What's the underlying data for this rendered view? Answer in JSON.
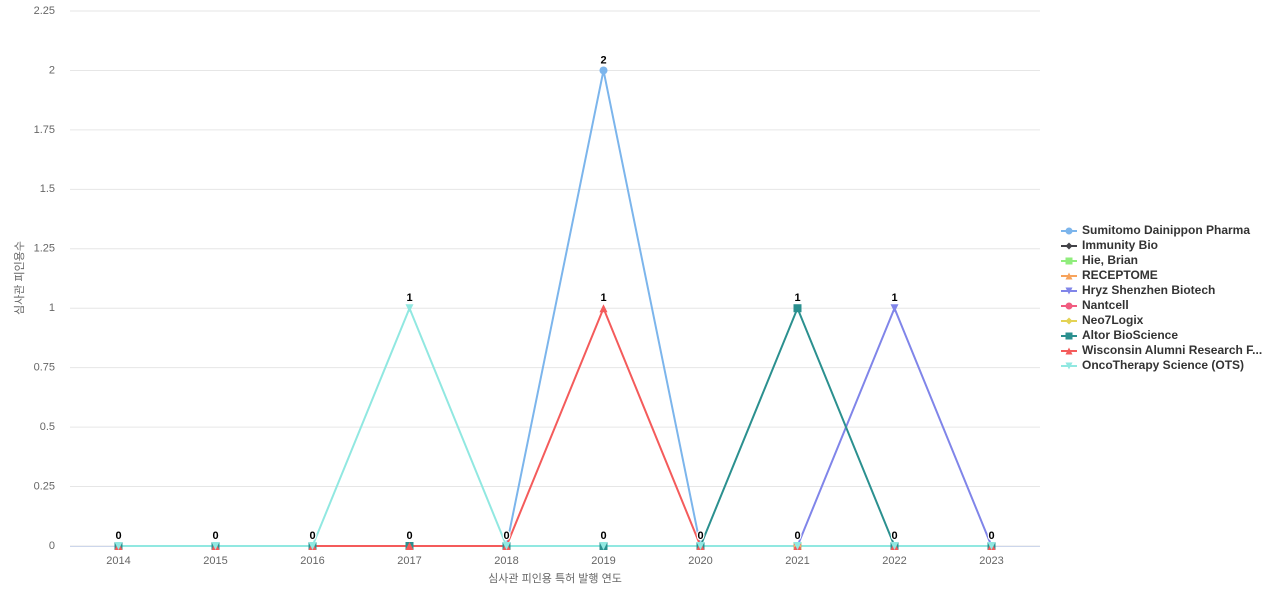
{
  "chart_data": {
    "type": "line",
    "x_label": "심사관 피인용 특허 발행 연도",
    "y_label": "심사관 피인용수",
    "categories": [
      "2014",
      "2015",
      "2016",
      "2017",
      "2018",
      "2019",
      "2020",
      "2021",
      "2022",
      "2023"
    ],
    "ylim": [
      0,
      2.25
    ],
    "yticks": [
      0,
      0.25,
      0.5,
      0.75,
      1,
      1.25,
      1.5,
      1.75,
      2,
      2.25
    ],
    "grid": true,
    "legend": "right",
    "series": [
      {
        "name": "Sumitomo Dainippon Pharma",
        "color": "#7cb5ec",
        "values": [
          0,
          0,
          0,
          0,
          0,
          2,
          0,
          0,
          0,
          0
        ]
      },
      {
        "name": "Immunity Bio",
        "color": "#434348",
        "values": [
          0,
          0,
          0,
          0,
          0,
          0,
          0,
          0,
          0,
          0
        ]
      },
      {
        "name": "Hie, Brian",
        "color": "#90ed7d",
        "values": [
          0,
          0,
          0,
          0,
          0,
          0,
          0,
          0,
          0,
          0
        ]
      },
      {
        "name": "RECEPTOME",
        "color": "#f7a35c",
        "values": [
          0,
          0,
          0,
          0,
          0,
          0,
          0,
          0,
          0,
          0
        ]
      },
      {
        "name": "Hryz Shenzhen Biotech",
        "color": "#8085e9",
        "values": [
          0,
          0,
          0,
          0,
          0,
          0,
          0,
          0,
          1,
          0
        ]
      },
      {
        "name": "Nantcell",
        "color": "#f15c80",
        "values": [
          0,
          0,
          0,
          0,
          0,
          0,
          0,
          0,
          0,
          0
        ]
      },
      {
        "name": "Neo7Logix",
        "color": "#e4d354",
        "values": [
          0,
          0,
          0,
          0,
          0,
          0,
          0,
          0,
          0,
          0
        ]
      },
      {
        "name": "Altor BioScience",
        "color": "#2b908f",
        "values": [
          0,
          0,
          0,
          0,
          0,
          0,
          0,
          1,
          0,
          0
        ]
      },
      {
        "name": "Wisconsin Alumni Research F...",
        "color": "#f45b5b",
        "values": [
          0,
          0,
          0,
          0,
          0,
          1,
          0,
          0,
          0,
          0
        ]
      },
      {
        "name": "OncoTherapy Science (OTS)",
        "color": "#91e8e1",
        "values": [
          0,
          0,
          0,
          1,
          0,
          0,
          0,
          0,
          0,
          0
        ]
      }
    ]
  }
}
